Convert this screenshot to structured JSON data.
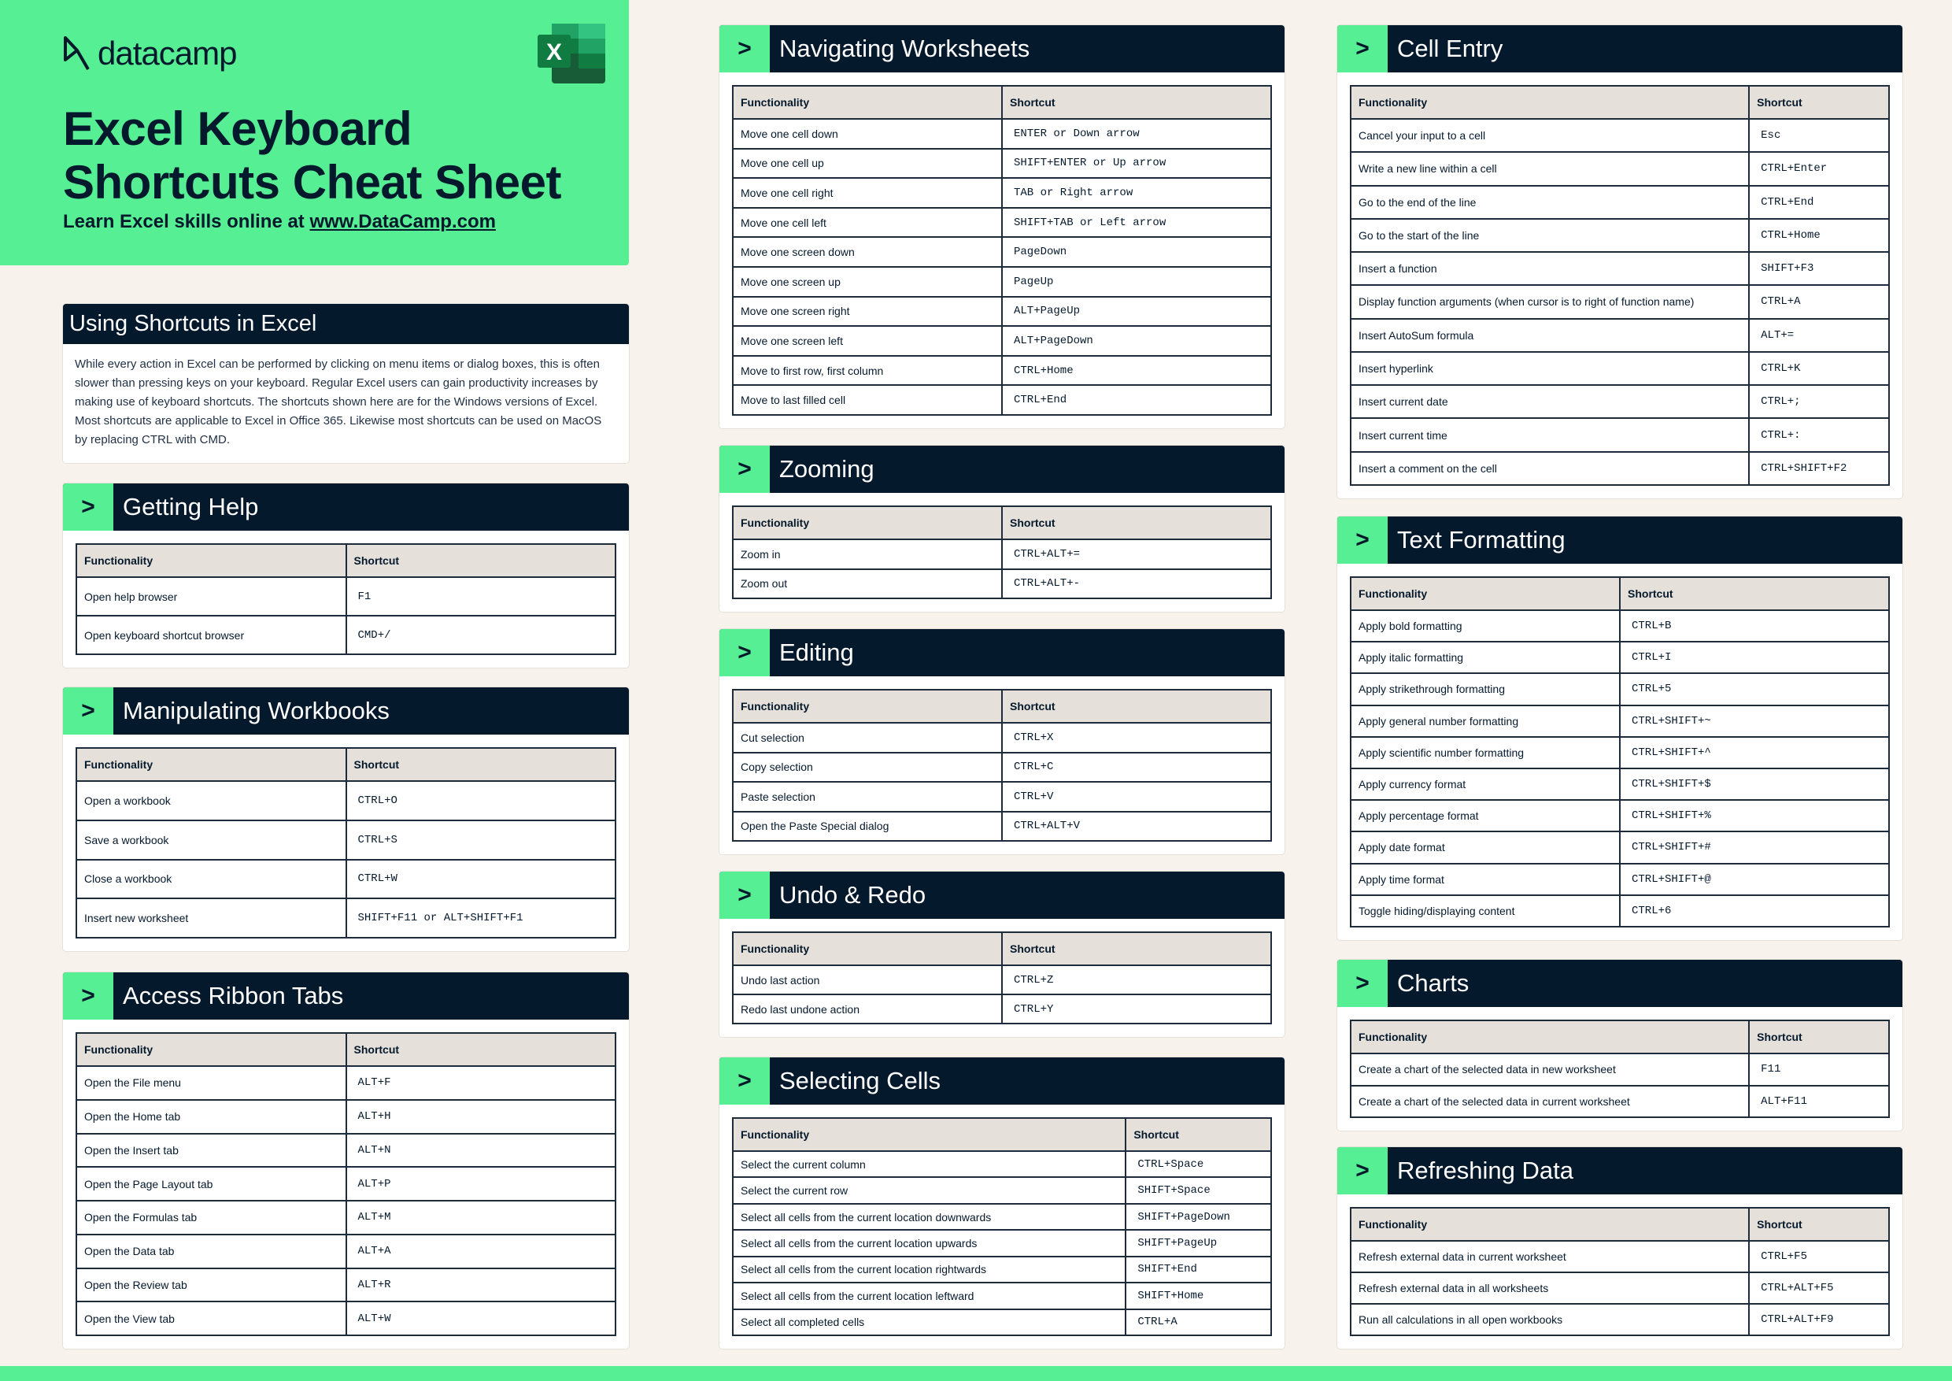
{
  "header": {
    "logo": "datacamp",
    "title_line1": "Excel Keyboard",
    "title_line2": "Shortcuts Cheat Sheet",
    "subtitle_prefix": "Learn Excel skills online at ",
    "subtitle_link": "www.DataCamp.com",
    "excel_icon": "excel-logo-icon",
    "accent": "#56ef93",
    "dark": "#05192d"
  },
  "intro": {
    "title": "Using Shortcuts in Excel",
    "text": "While every action in Excel can be performed by clicking on menu items or dialog boxes, this is often slower than pressing keys on your keyboard. Regular Excel users can gain productivity increases by making use of keyboard shortcuts. The shortcuts shown here are for the Windows versions of Excel. Most shortcuts are applicable to Excel in Office 365. Likewise most shortcuts can be used on MacOS by replacing CTRL with CMD."
  },
  "columns": {
    "func": "Functionality",
    "key": "Shortcut"
  },
  "chevron": ">",
  "sections": [
    {
      "id": "getting-help",
      "title": "Getting Help",
      "rows": [
        [
          "Open help browser",
          "F1"
        ],
        [
          "Open keyboard shortcut browser",
          "CMD+/"
        ]
      ]
    },
    {
      "id": "manipulating-workbooks",
      "title": "Manipulating Workbooks",
      "rows": [
        [
          "Open a workbook",
          "CTRL+O"
        ],
        [
          "Save a workbook",
          "CTRL+S"
        ],
        [
          "Close a workbook",
          "CTRL+W"
        ],
        [
          "Insert new worksheet",
          "SHIFT+F11 or ALT+SHIFT+F1"
        ]
      ]
    },
    {
      "id": "access-ribbon-tabs",
      "title": "Access Ribbon Tabs",
      "rows": [
        [
          "Open the File menu",
          "ALT+F"
        ],
        [
          "Open the Home tab",
          "ALT+H"
        ],
        [
          "Open the Insert tab",
          "ALT+N"
        ],
        [
          "Open the Page Layout tab",
          "ALT+P"
        ],
        [
          "Open the Formulas tab",
          "ALT+M"
        ],
        [
          "Open the Data tab",
          "ALT+A"
        ],
        [
          "Open the Review tab",
          "ALT+R"
        ],
        [
          "Open the View tab",
          "ALT+W"
        ]
      ]
    },
    {
      "id": "navigating-worksheets",
      "title": "Navigating Worksheets",
      "rows": [
        [
          "Move one cell down",
          "ENTER or Down arrow"
        ],
        [
          "Move one cell up",
          "SHIFT+ENTER or Up arrow"
        ],
        [
          "Move one cell right",
          "TAB or Right arrow"
        ],
        [
          "Move one cell left",
          "SHIFT+TAB or Left arrow"
        ],
        [
          "Move one screen down",
          "PageDown"
        ],
        [
          "Move one screen up",
          "PageUp"
        ],
        [
          "Move one screen right",
          "ALT+PageUp"
        ],
        [
          "Move one screen left",
          "ALT+PageDown"
        ],
        [
          "Move to first row, first column",
          "CTRL+Home"
        ],
        [
          "Move to last filled cell",
          "CTRL+End"
        ]
      ]
    },
    {
      "id": "zooming",
      "title": "Zooming",
      "rows": [
        [
          "Zoom in",
          "CTRL+ALT+="
        ],
        [
          "Zoom out",
          "CTRL+ALT+-"
        ]
      ]
    },
    {
      "id": "editing",
      "title": "Editing",
      "rows": [
        [
          "Cut selection",
          "CTRL+X"
        ],
        [
          "Copy selection",
          "CTRL+C"
        ],
        [
          "Paste selection",
          "CTRL+V"
        ],
        [
          "Open the Paste Special dialog",
          "CTRL+ALT+V"
        ]
      ]
    },
    {
      "id": "undo-redo",
      "title": "Undo & Redo",
      "rows": [
        [
          "Undo last action",
          "CTRL+Z"
        ],
        [
          "Redo last undone action",
          "CTRL+Y"
        ]
      ]
    },
    {
      "id": "selecting-cells",
      "title": "Selecting Cells",
      "rows": [
        [
          "Select the current column",
          "CTRL+Space"
        ],
        [
          "Select the current row",
          "SHIFT+Space"
        ],
        [
          "Select all cells from the current location downwards",
          "SHIFT+PageDown"
        ],
        [
          "Select all cells from the current location upwards",
          "SHIFT+PageUp"
        ],
        [
          "Select all cells from the current location rightwards",
          "SHIFT+End"
        ],
        [
          "Select all cells from the current location leftward",
          "SHIFT+Home"
        ],
        [
          "Select all completed cells",
          "CTRL+A"
        ]
      ]
    },
    {
      "id": "cell-entry",
      "title": "Cell Entry",
      "rows": [
        [
          "Cancel your input to a cell",
          "Esc"
        ],
        [
          "Write a new line within a cell",
          "CTRL+Enter"
        ],
        [
          "Go to the end of the line",
          "CTRL+End"
        ],
        [
          "Go to the start of the line",
          "CTRL+Home"
        ],
        [
          "Insert a function",
          "SHIFT+F3"
        ],
        [
          "Display function arguments (when cursor is to right of function name)",
          "CTRL+A"
        ],
        [
          "Insert AutoSum formula",
          "ALT+="
        ],
        [
          "Insert hyperlink",
          "CTRL+K"
        ],
        [
          "Insert current date",
          "CTRL+;"
        ],
        [
          "Insert current time",
          "CTRL+:"
        ],
        [
          "Insert a comment on the cell",
          "CTRL+SHIFT+F2"
        ]
      ]
    },
    {
      "id": "text-formatting",
      "title": "Text Formatting",
      "rows": [
        [
          "Apply bold formatting",
          "CTRL+B"
        ],
        [
          "Apply italic formatting",
          "CTRL+I"
        ],
        [
          "Apply strikethrough formatting",
          "CTRL+5"
        ],
        [
          "Apply general number formatting",
          "CTRL+SHIFT+~"
        ],
        [
          "Apply scientific number formatting",
          "CTRL+SHIFT+^"
        ],
        [
          "Apply currency format",
          "CTRL+SHIFT+$"
        ],
        [
          "Apply percentage format",
          "CTRL+SHIFT+%"
        ],
        [
          "Apply date format",
          "CTRL+SHIFT+#"
        ],
        [
          "Apply time format",
          "CTRL+SHIFT+@"
        ],
        [
          "Toggle hiding/displaying content",
          "CTRL+6"
        ]
      ]
    },
    {
      "id": "charts",
      "title": "Charts",
      "rows": [
        [
          "Create a chart of the selected data in new worksheet",
          "F11"
        ],
        [
          "Create a chart of the selected data in current worksheet",
          "ALT+F11"
        ]
      ]
    },
    {
      "id": "refreshing-data",
      "title": "Refreshing Data",
      "rows": [
        [
          "Refresh external data in current worksheet",
          "CTRL+F5"
        ],
        [
          "Refresh external data in all worksheets",
          "CTRL+ALT+F5"
        ],
        [
          "Run all calculations in all open workbooks",
          "CTRL+ALT+F9"
        ]
      ]
    }
  ]
}
